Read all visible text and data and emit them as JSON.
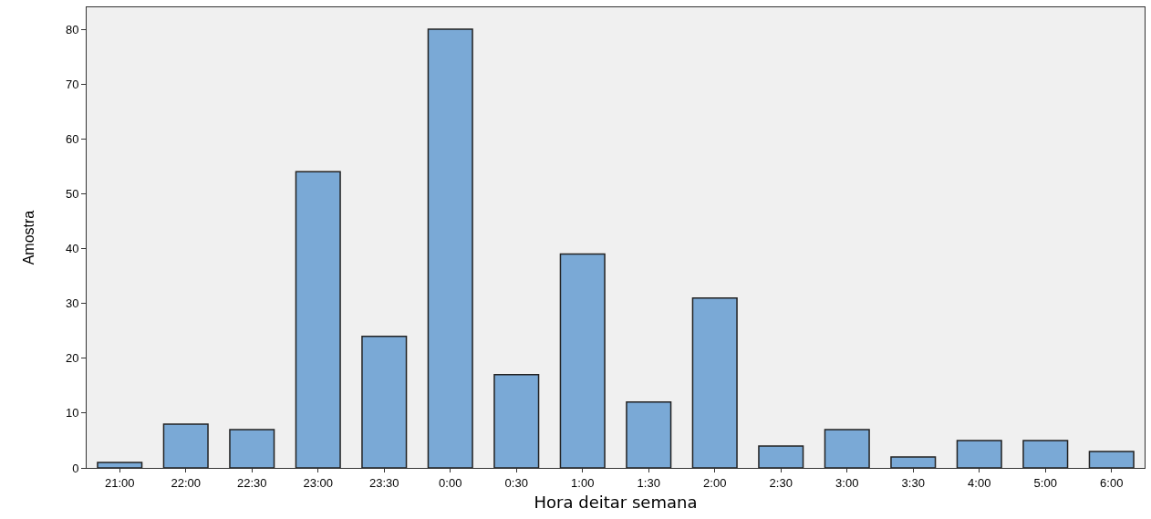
{
  "chart_data": {
    "type": "bar",
    "xlabel": "Hora deitar semana",
    "ylabel": "Amostra",
    "categories": [
      "21:00",
      "22:00",
      "22:30",
      "23:00",
      "23:30",
      "0:00",
      "0:30",
      "1:00",
      "1:30",
      "2:00",
      "2:30",
      "3:00",
      "3:30",
      "4:00",
      "5:00",
      "6:00"
    ],
    "values": [
      1,
      8,
      7,
      54,
      24,
      80,
      17,
      39,
      12,
      31,
      4,
      7,
      2,
      5,
      5,
      3
    ],
    "color": "#7aa9d6",
    "ylim": [
      0,
      84
    ],
    "yticks": [
      0,
      10,
      20,
      30,
      40,
      50,
      60,
      70,
      80
    ],
    "grid": false
  }
}
